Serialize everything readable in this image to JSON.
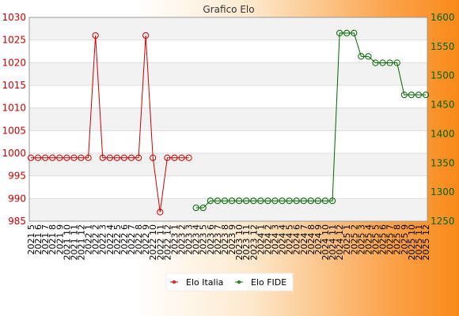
{
  "chart_data": {
    "type": "line",
    "title": "Grafico Elo",
    "categories": [
      "2021 5",
      "2021 6",
      "2021 7",
      "2021 8",
      "2021 9",
      "2021 10",
      "2021 11",
      "2021 12",
      "2022 1",
      "2022 2",
      "2022 3",
      "2022 4",
      "2022 5",
      "2022 6",
      "2022 7",
      "2022 8",
      "2022 9",
      "2022 10",
      "2022 11",
      "2022 12",
      "2023 1",
      "2023 2",
      "2023 3",
      "2023 4",
      "2023 5",
      "2023 6",
      "2023 7",
      "2023 8",
      "2023 9",
      "2023 10",
      "2023 11",
      "2023 12",
      "2024 1",
      "2024 2",
      "2024 3",
      "2024 4",
      "2024 5",
      "2024 6",
      "2024 7",
      "2024 8",
      "2024 9",
      "2024 10",
      "2024 11",
      "2024 12",
      "2025 1",
      "2025 2",
      "2025 3",
      "2025 4",
      "2025 5",
      "2025 6",
      "2025 7",
      "2025 8",
      "2025 9",
      "2025 10",
      "2025 11",
      "2025 12"
    ],
    "series": [
      {
        "name": "Elo Italia",
        "axis": "left",
        "color": "#cc0000",
        "values": [
          999,
          999,
          999,
          999,
          999,
          999,
          999,
          999,
          999,
          1026,
          999,
          999,
          999,
          999,
          999,
          999,
          1026,
          999,
          987,
          999,
          999,
          999,
          999,
          null,
          null,
          null,
          null,
          null,
          null,
          null,
          null,
          null,
          null,
          null,
          null,
          null,
          null,
          null,
          null,
          null,
          null,
          null,
          null,
          null,
          null,
          null,
          null,
          null,
          null,
          null,
          null,
          null,
          null,
          null,
          null,
          null
        ]
      },
      {
        "name": "Elo FIDE",
        "axis": "right",
        "color": "#006600",
        "values": [
          null,
          null,
          null,
          null,
          null,
          null,
          null,
          null,
          null,
          null,
          null,
          null,
          null,
          null,
          null,
          null,
          null,
          null,
          null,
          null,
          null,
          null,
          null,
          1273,
          1273,
          1285,
          1285,
          1285,
          1285,
          1285,
          1285,
          1285,
          1285,
          1285,
          1285,
          1285,
          1285,
          1285,
          1285,
          1285,
          1285,
          1285,
          1285,
          1573,
          1573,
          1573,
          1533,
          1533,
          1522,
          1522,
          1522,
          1522,
          1467,
          1467,
          1467,
          1467
        ]
      }
    ],
    "y_left": {
      "ylim": [
        985,
        1030
      ],
      "ticks": [
        985,
        990,
        995,
        1000,
        1005,
        1010,
        1015,
        1020,
        1025,
        1030
      ]
    },
    "y_right": {
      "ylim": [
        1250,
        1600
      ],
      "ticks": [
        1250,
        1300,
        1350,
        1400,
        1450,
        1500,
        1550,
        1600
      ]
    },
    "grid": true,
    "legend_position": "bottom"
  }
}
